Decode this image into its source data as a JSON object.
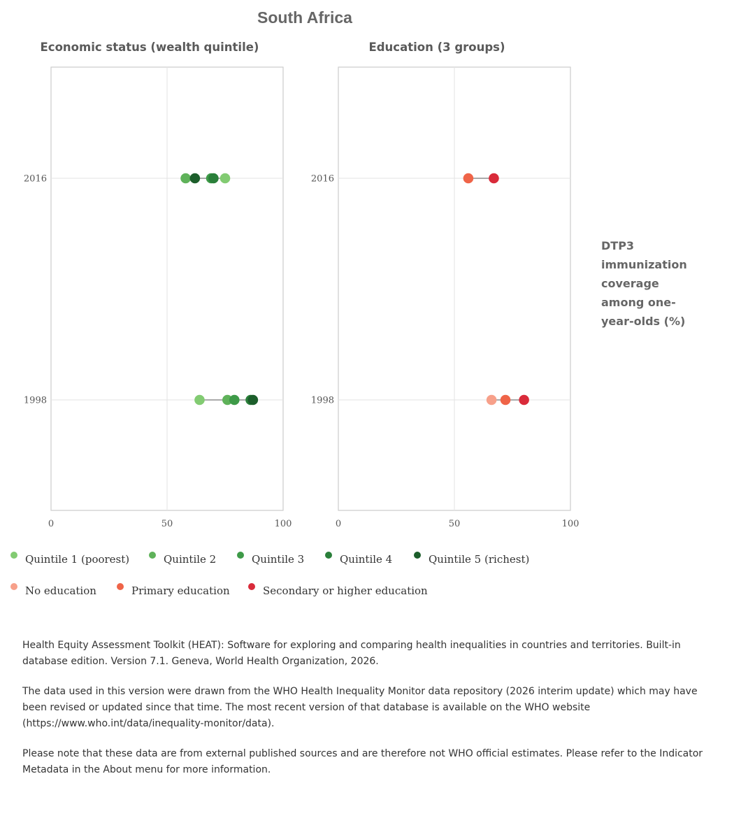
{
  "chart_data": {
    "type": "scatter",
    "title": "South Africa",
    "ylabel": "DTP3 immunization coverage among one-year-olds (%)",
    "years": [
      "2016",
      "1998"
    ],
    "xlim": [
      0,
      100
    ],
    "xticks": [
      "0",
      "50",
      "100"
    ],
    "grid": true,
    "panels": [
      {
        "title": "Economic status (wealth quintile)",
        "series": [
          {
            "name": "Quintile 1 (poorest)",
            "color": "#82cb72",
            "values": {
              "2016": 75,
              "1998": 64
            }
          },
          {
            "name": "Quintile 2",
            "color": "#5fb25a",
            "values": {
              "2016": 58,
              "1998": 76
            }
          },
          {
            "name": "Quintile 3",
            "color": "#3e9a48",
            "values": {
              "2016": 69,
              "1998": 79
            }
          },
          {
            "name": "Quintile 4",
            "color": "#2a7f3a",
            "values": {
              "2016": 70,
              "1998": 86
            }
          },
          {
            "name": "Quintile 5 (richest)",
            "color": "#1c5e2b",
            "values": {
              "2016": 62,
              "1998": 87
            }
          }
        ]
      },
      {
        "title": "Education (3 groups)",
        "series": [
          {
            "name": "No education",
            "color": "#f7a08a",
            "values": {
              "1998": 66
            }
          },
          {
            "name": "Primary education",
            "color": "#ef6448",
            "values": {
              "2016": 56,
              "1998": 72
            }
          },
          {
            "name": "Secondary or higher education",
            "color": "#d92b3a",
            "values": {
              "2016": 67,
              "1998": 80
            }
          }
        ]
      }
    ]
  },
  "footer": {
    "p1": "Health Equity Assessment Toolkit (HEAT): Software for exploring and comparing health inequalities in countries and territories. Built-in database edition. Version 7.1. Geneva, World Health Organization, 2026.",
    "p2": "The data used in this version were drawn from the WHO Health Inequality Monitor data repository (2026 interim update) which may have been revised or updated since that time. The most recent version of that database is available on the WHO website (https://www.who.int/data/inequality-monitor/data).",
    "p3": "Please note that these data are from external published sources and are therefore not WHO official estimates. Please refer to the Indicator Metadata in the About menu for more information."
  }
}
